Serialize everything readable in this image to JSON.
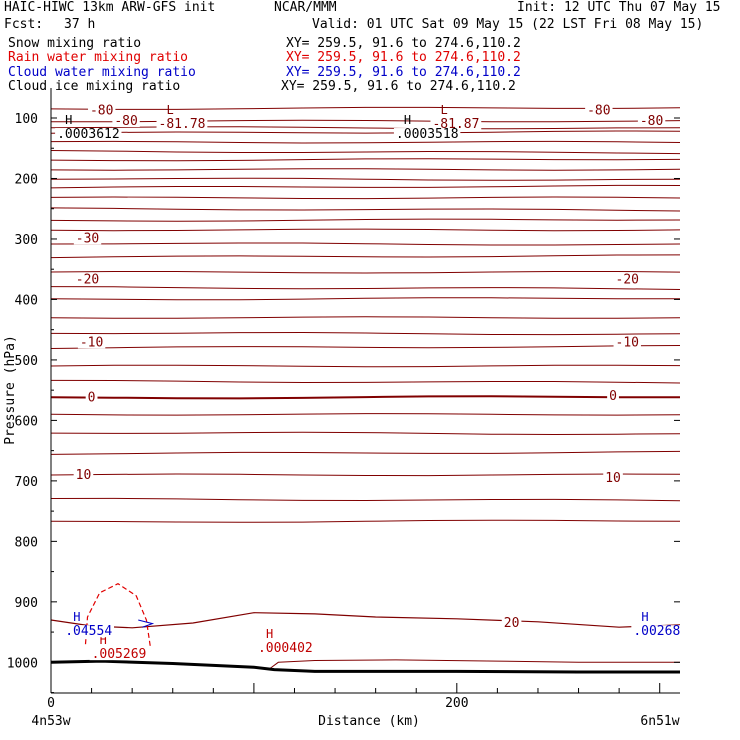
{
  "header": {
    "model": "HAIC-HIWC 13km ARW-GFS init",
    "org": "NCAR/MMM",
    "init": "Init: 12 UTC Thu 07 May 15",
    "fcst_label": "Fcst:",
    "fcst_value": "37 h",
    "valid": "Valid: 01 UTC Sat 09 May 15 (22 LST Fri 08 May 15)"
  },
  "fields": [
    {
      "name": "Snow mixing ratio",
      "xy": "XY= 259.5, 91.6 to 274.6,110.2",
      "color": "#000000"
    },
    {
      "name": "Rain water mixing ratio",
      "xy": "XY= 259.5, 91.6 to 274.6,110.2",
      "color": "#e00000"
    },
    {
      "name": "Cloud water mixing ratio",
      "xy": "XY= 259.5, 91.6 to 274.6,110.2",
      "color": "#0000c8"
    },
    {
      "name": "Cloud ice mixing ratio",
      "xy": "XY= 259.5, 91.6 to 274.6,110.2",
      "color": "#000000"
    }
  ],
  "chart_data": {
    "type": "line",
    "title": "",
    "xlabel": "Distance (km)",
    "ylabel": "Pressure (hPa)",
    "xlim": [
      0,
      310
    ],
    "ylim": [
      1050,
      70
    ],
    "x_ticks": [
      "0",
      "200"
    ],
    "x_tick_values": [
      0,
      200
    ],
    "x_endpoints": [
      "4n53w",
      "6n51w"
    ],
    "y_ticks": [
      "100",
      "200",
      "300",
      "400",
      "500",
      "600",
      "700",
      "800",
      "900",
      "1000"
    ],
    "y_tick_values": [
      100,
      200,
      300,
      400,
      500,
      600,
      700,
      800,
      900,
      1000
    ],
    "temperature_contour_color": "#800000",
    "temperature_contours_hpa": [
      85,
      105,
      115,
      125,
      140,
      155,
      170,
      185,
      200,
      215,
      232,
      250,
      270,
      285,
      307,
      330,
      355,
      380,
      400,
      430,
      455,
      480,
      510,
      535,
      563,
      590,
      620,
      655,
      690,
      730,
      768
    ],
    "contour_labels": [
      {
        "text": "-80",
        "x": 25,
        "p": 88
      },
      {
        "text": "-80",
        "x": 270,
        "p": 88
      },
      {
        "text": "-80",
        "x": 37,
        "p": 105
      },
      {
        "text": "-80",
        "x": 296,
        "p": 105
      },
      {
        "text": "-30",
        "x": 18,
        "p": 299
      },
      {
        "text": "-20",
        "x": 18,
        "p": 367
      },
      {
        "text": "-20",
        "x": 284,
        "p": 367
      },
      {
        "text": "-10",
        "x": 20,
        "p": 471
      },
      {
        "text": "-10",
        "x": 284,
        "p": 471
      },
      {
        "text": "0",
        "x": 20,
        "p": 562
      },
      {
        "text": "0",
        "x": 277,
        "p": 560
      },
      {
        "text": "10",
        "x": 16,
        "p": 690
      },
      {
        "text": "10",
        "x": 277,
        "p": 695
      },
      {
        "text": "20",
        "x": 227,
        "p": 935
      }
    ],
    "temperature_extrema": [
      {
        "symbol": "L",
        "x": 53,
        "p": 93,
        "value": "-81.78"
      },
      {
        "symbol": "L",
        "x": 188,
        "p": 93,
        "value": "-81.87"
      }
    ],
    "snow_maxima": [
      {
        "symbol": "H",
        "x": 3,
        "p": 110,
        "value": ".0003612"
      },
      {
        "symbol": "H",
        "x": 170,
        "p": 110,
        "value": ".0003518"
      }
    ],
    "rain_maxima": [
      {
        "symbol": "H",
        "x": 20,
        "p": 970,
        "value": ".005269"
      },
      {
        "symbol": "H",
        "x": 102,
        "p": 960,
        "value": ".000402"
      }
    ],
    "cloud_water_maxima": [
      {
        "symbol": "H",
        "x": 7,
        "p": 932,
        "value": ".04554"
      },
      {
        "symbol": "H",
        "x": 287,
        "p": 932,
        "value": ".00268"
      }
    ],
    "freezing_level_hpa": 563,
    "grid": false
  }
}
